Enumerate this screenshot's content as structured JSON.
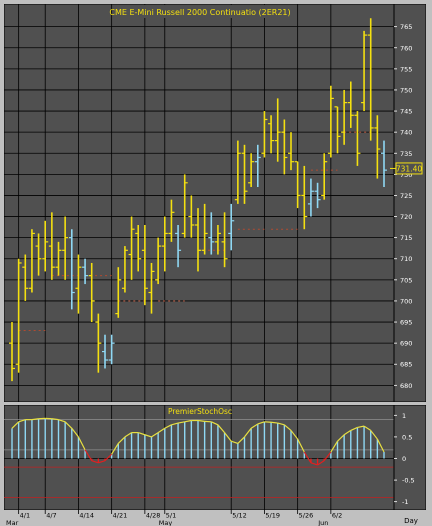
{
  "window": {
    "title": "CME  E-Mini Russell 2000 Continuatio  (2ER21)",
    "oscillator_title": "PremierStochOsc",
    "day_label": "Day"
  },
  "colors": {
    "background": "#505050",
    "grid": "#000000",
    "up_bar": "#f4e010",
    "down_bar": "#8fd8f4",
    "ma_line": "#b04a30",
    "osc_histogram": "#8fd8f4",
    "osc_line_pos": "#e8e040",
    "osc_line_neg": "#e02020",
    "price_marker": "#f4e010",
    "axis_text": "#ffffff"
  },
  "chart_data": {
    "type": "ohlc",
    "ylim": [
      677,
      768
    ],
    "y_ticks": [
      680,
      685,
      690,
      695,
      700,
      705,
      710,
      715,
      720,
      725,
      730,
      735,
      740,
      745,
      750,
      755,
      760,
      765
    ],
    "last_price": "731.40",
    "bars": [
      {
        "h": 695,
        "l": 681,
        "o": 690,
        "c": 684,
        "dir": "up"
      },
      {
        "h": 710,
        "l": 683,
        "o": 685,
        "c": 709,
        "dir": "up"
      },
      {
        "h": 711,
        "l": 700,
        "o": 708,
        "c": 703,
        "dir": "up"
      },
      {
        "h": 717,
        "l": 702,
        "o": 703,
        "c": 716,
        "dir": "up"
      },
      {
        "h": 716,
        "l": 706,
        "o": 713,
        "c": 710,
        "dir": "up"
      },
      {
        "h": 719,
        "l": 707,
        "o": 710,
        "c": 714,
        "dir": "up"
      },
      {
        "h": 721,
        "l": 705,
        "o": 713,
        "c": 708,
        "dir": "up"
      },
      {
        "h": 714,
        "l": 706,
        "o": 708,
        "c": 712,
        "dir": "up"
      },
      {
        "h": 720,
        "l": 705,
        "o": 712,
        "c": 715,
        "dir": "up"
      },
      {
        "h": 717,
        "l": 698,
        "o": 715,
        "c": 702,
        "dir": "down"
      },
      {
        "h": 711,
        "l": 697,
        "o": 703,
        "c": 708,
        "dir": "up"
      },
      {
        "h": 710,
        "l": 704,
        "o": 708,
        "c": 706,
        "dir": "down"
      },
      {
        "h": 709,
        "l": 695,
        "o": 706,
        "c": 700,
        "dir": "up"
      },
      {
        "h": 697,
        "l": 683,
        "o": 695,
        "c": 690,
        "dir": "up"
      },
      {
        "h": 692,
        "l": 684,
        "o": 688,
        "c": 686,
        "dir": "down"
      },
      {
        "h": 692,
        "l": 685,
        "o": 686,
        "c": 690,
        "dir": "down"
      },
      {
        "h": 708,
        "l": 696,
        "o": 697,
        "c": 705,
        "dir": "up"
      },
      {
        "h": 713,
        "l": 702,
        "o": 703,
        "c": 712,
        "dir": "up"
      },
      {
        "h": 720,
        "l": 705,
        "o": 711,
        "c": 717,
        "dir": "up"
      },
      {
        "h": 718,
        "l": 707,
        "o": 716,
        "c": 710,
        "dir": "up"
      },
      {
        "h": 718,
        "l": 699,
        "o": 712,
        "c": 703,
        "dir": "up"
      },
      {
        "h": 709,
        "l": 697,
        "o": 702,
        "c": 707,
        "dir": "up"
      },
      {
        "h": 715,
        "l": 704,
        "o": 705,
        "c": 713,
        "dir": "up"
      },
      {
        "h": 720,
        "l": 707,
        "o": 713,
        "c": 716,
        "dir": "up"
      },
      {
        "h": 724,
        "l": 714,
        "o": 716,
        "c": 721,
        "dir": "up"
      },
      {
        "h": 718,
        "l": 708,
        "o": 716,
        "c": 712,
        "dir": "down"
      },
      {
        "h": 730,
        "l": 715,
        "o": 716,
        "c": 728,
        "dir": "up"
      },
      {
        "h": 725,
        "l": 715,
        "o": 720,
        "c": 718,
        "dir": "up"
      },
      {
        "h": 722,
        "l": 707,
        "o": 718,
        "c": 712,
        "dir": "up"
      },
      {
        "h": 723,
        "l": 711,
        "o": 712,
        "c": 716,
        "dir": "up"
      },
      {
        "h": 721,
        "l": 711,
        "o": 715,
        "c": 714,
        "dir": "down"
      },
      {
        "h": 718,
        "l": 711,
        "o": 714,
        "c": 716,
        "dir": "up"
      },
      {
        "h": 721,
        "l": 708,
        "o": 714,
        "c": 710,
        "dir": "up"
      },
      {
        "h": 723,
        "l": 712,
        "o": 716,
        "c": 719,
        "dir": "down"
      },
      {
        "h": 738,
        "l": 723,
        "o": 724,
        "c": 735,
        "dir": "up"
      },
      {
        "h": 737,
        "l": 723,
        "o": 735,
        "c": 726,
        "dir": "up"
      },
      {
        "h": 735,
        "l": 727,
        "o": 728,
        "c": 733,
        "dir": "up"
      },
      {
        "h": 737,
        "l": 727,
        "o": 733,
        "c": 734,
        "dir": "down"
      },
      {
        "h": 745,
        "l": 734,
        "o": 735,
        "c": 743,
        "dir": "up"
      },
      {
        "h": 744,
        "l": 735,
        "o": 742,
        "c": 738,
        "dir": "up"
      },
      {
        "h": 748,
        "l": 733,
        "o": 738,
        "c": 740,
        "dir": "up"
      },
      {
        "h": 743,
        "l": 730,
        "o": 740,
        "c": 734,
        "dir": "up"
      },
      {
        "h": 740,
        "l": 731,
        "o": 735,
        "c": 733,
        "dir": "up"
      },
      {
        "h": 733,
        "l": 722,
        "o": 733,
        "c": 725,
        "dir": "up"
      },
      {
        "h": 732,
        "l": 717,
        "o": 725,
        "c": 720,
        "dir": "up"
      },
      {
        "h": 729,
        "l": 720,
        "o": 723,
        "c": 726,
        "dir": "down"
      },
      {
        "h": 728,
        "l": 722,
        "o": 726,
        "c": 724,
        "dir": "down"
      },
      {
        "h": 735,
        "l": 724,
        "o": 725,
        "c": 733,
        "dir": "up"
      },
      {
        "h": 751,
        "l": 734,
        "o": 735,
        "c": 748,
        "dir": "up"
      },
      {
        "h": 746,
        "l": 735,
        "o": 746,
        "c": 739,
        "dir": "up"
      },
      {
        "h": 750,
        "l": 737,
        "o": 740,
        "c": 747,
        "dir": "up"
      },
      {
        "h": 752,
        "l": 741,
        "o": 747,
        "c": 744,
        "dir": "up"
      },
      {
        "h": 745,
        "l": 732,
        "o": 744,
        "c": 735,
        "dir": "up"
      },
      {
        "h": 764,
        "l": 745,
        "o": 747,
        "c": 763,
        "dir": "up"
      },
      {
        "h": 767,
        "l": 738,
        "o": 763,
        "c": 741,
        "dir": "up"
      },
      {
        "h": 744,
        "l": 729,
        "o": 741,
        "c": 736,
        "dir": "up"
      },
      {
        "h": 738,
        "l": 727,
        "o": 735,
        "c": 731,
        "dir": "down"
      }
    ],
    "ma_segments": [
      {
        "x": 3,
        "y": 693
      },
      {
        "x": 8,
        "y": 706
      },
      {
        "x": 13,
        "y": 706
      },
      {
        "x": 18,
        "y": 700
      },
      {
        "x": 24,
        "y": 700
      },
      {
        "x": 30,
        "y": 712
      },
      {
        "x": 36,
        "y": 717
      },
      {
        "x": 41,
        "y": 717
      },
      {
        "x": 47,
        "y": 731
      },
      {
        "x": 52,
        "y": 740
      }
    ],
    "oscillator": {
      "ylim": [
        -1.1,
        1.1
      ],
      "y_ticks": [
        "1",
        "0.5",
        "0",
        "-0.5",
        "-1"
      ],
      "bands": [
        0.9,
        0.2,
        -0.2,
        -0.9
      ],
      "values": [
        0.7,
        0.85,
        0.9,
        0.9,
        0.92,
        0.93,
        0.92,
        0.9,
        0.85,
        0.7,
        0.5,
        0.2,
        -0.05,
        -0.1,
        -0.05,
        0.1,
        0.35,
        0.5,
        0.6,
        0.6,
        0.55,
        0.5,
        0.6,
        0.7,
        0.78,
        0.82,
        0.85,
        0.88,
        0.88,
        0.86,
        0.85,
        0.78,
        0.6,
        0.4,
        0.35,
        0.5,
        0.7,
        0.8,
        0.85,
        0.84,
        0.82,
        0.78,
        0.65,
        0.45,
        0.15,
        -0.1,
        -0.15,
        -0.05,
        0.15,
        0.4,
        0.55,
        0.65,
        0.72,
        0.75,
        0.65,
        0.45,
        0.15
      ]
    },
    "x_ticks": [
      {
        "label": "4/1",
        "index": 1
      },
      {
        "label": "4/7",
        "index": 5
      },
      {
        "label": "4/14",
        "index": 10
      },
      {
        "label": "4/21",
        "index": 15
      },
      {
        "label": "4/28",
        "index": 20
      },
      {
        "label": "5/1",
        "index": 23
      },
      {
        "label": "5/12",
        "index": 33
      },
      {
        "label": "5/19",
        "index": 38
      },
      {
        "label": "5/26",
        "index": 43
      },
      {
        "label": "6/2",
        "index": 48
      }
    ],
    "x_major": [
      {
        "label": "Mar",
        "index": 0
      },
      {
        "label": "May",
        "index": 23
      },
      {
        "label": "Jun",
        "index": 47
      }
    ]
  }
}
